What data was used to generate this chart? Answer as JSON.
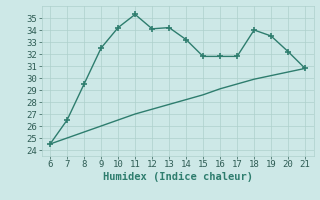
{
  "x": [
    6,
    7,
    8,
    9,
    10,
    11,
    12,
    13,
    14,
    15,
    16,
    17,
    18,
    19,
    20,
    21
  ],
  "y_upper": [
    24.5,
    26.5,
    29.5,
    32.5,
    34.2,
    35.3,
    34.1,
    34.2,
    33.2,
    31.8,
    31.8,
    31.8,
    34.0,
    33.5,
    32.2,
    30.8
  ],
  "y_lower": [
    24.5,
    25.0,
    25.5,
    26.0,
    26.5,
    27.0,
    27.4,
    27.8,
    28.2,
    28.6,
    29.1,
    29.5,
    29.9,
    30.2,
    30.5,
    30.8
  ],
  "line_color": "#2e7d6e",
  "bg_color": "#cde8e7",
  "grid_color": "#aed0cc",
  "xlabel": "Humidex (Indice chaleur)",
  "xlim": [
    5.5,
    21.5
  ],
  "ylim": [
    23.5,
    36.0
  ],
  "yticks": [
    24,
    25,
    26,
    27,
    28,
    29,
    30,
    31,
    32,
    33,
    34,
    35
  ],
  "xticks": [
    6,
    7,
    8,
    9,
    10,
    11,
    12,
    13,
    14,
    15,
    16,
    17,
    18,
    19,
    20,
    21
  ],
  "tick_fontsize": 6.5,
  "xlabel_fontsize": 7.5,
  "marker_size": 4,
  "line_width": 1.0
}
